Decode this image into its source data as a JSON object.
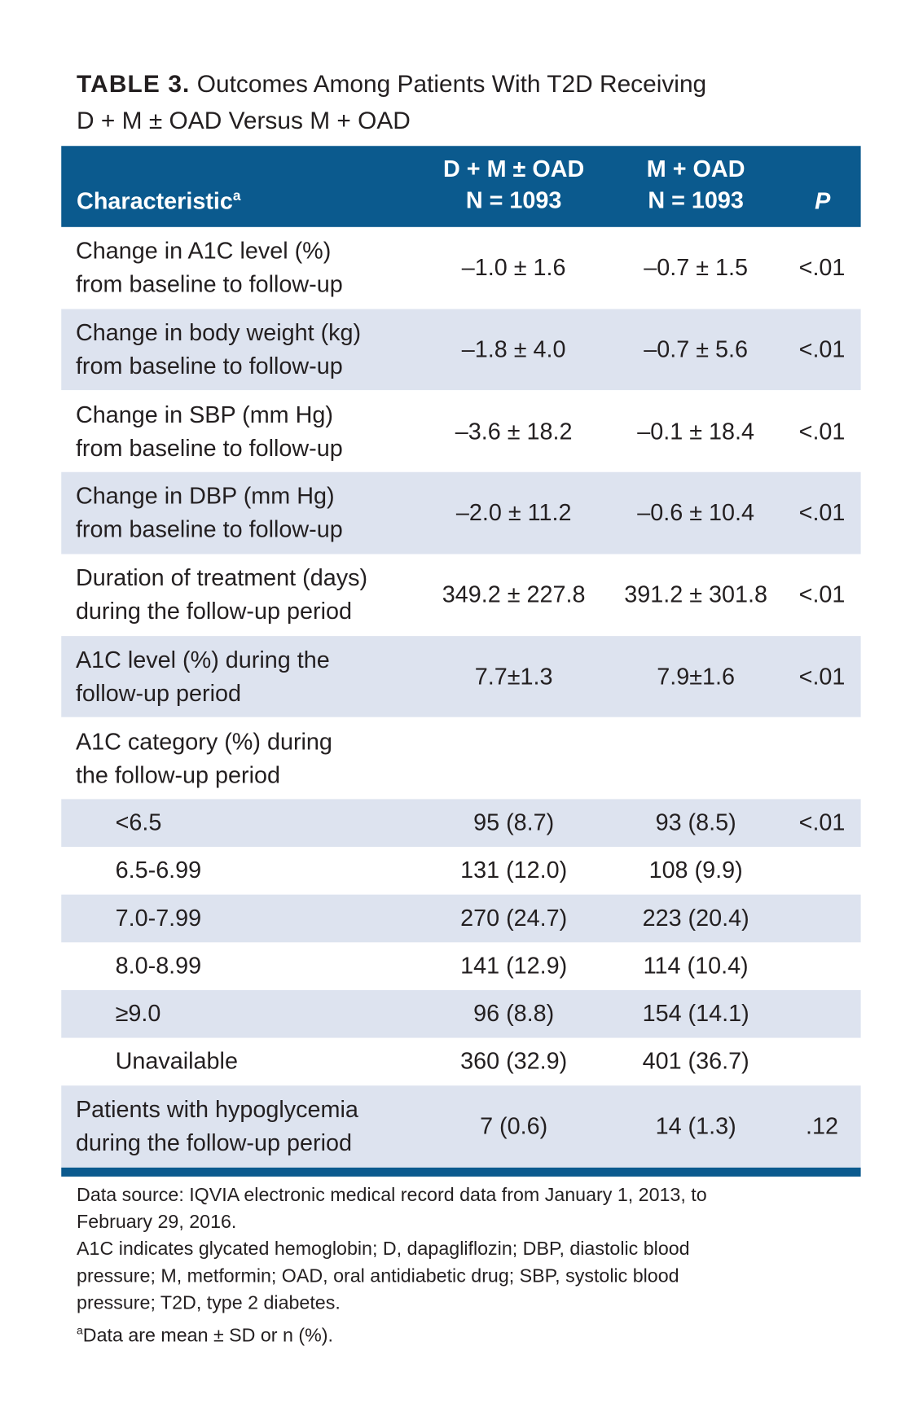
{
  "title": {
    "label": "TABLE 3.",
    "text": [
      "Outcomes Among Patients With T2D Receiving",
      "D + M ± OAD Versus M + OAD"
    ]
  },
  "table": {
    "header": {
      "characteristic": {
        "text": "Characteristic",
        "note": "a"
      },
      "dm": [
        "D + M ± OAD",
        "N = 1093"
      ],
      "m": [
        "M + OAD",
        "N = 1093"
      ],
      "p": "P"
    },
    "rows": [
      {
        "label": [
          "Change in A1C level (%)",
          "from baseline to follow-up"
        ],
        "dm": "–1.0 ± 1.6",
        "m": "–0.7 ± 1.5",
        "p": "<.01"
      },
      {
        "label": [
          "Change in body weight (kg)",
          "from baseline to follow-up"
        ],
        "dm": "–1.8 ± 4.0",
        "m": "–0.7 ± 5.6",
        "p": "<.01"
      },
      {
        "label": [
          "Change in SBP (mm Hg)",
          "from baseline to follow-up"
        ],
        "dm": "–3.6 ± 18.2",
        "m": "–0.1 ± 18.4",
        "p": "<.01"
      },
      {
        "label": [
          "Change in DBP (mm Hg)",
          "from baseline to follow-up"
        ],
        "dm": "–2.0 ± 11.2",
        "m": "–0.6 ± 10.4",
        "p": "<.01"
      },
      {
        "label": [
          "Duration of treatment (days)",
          "during the follow-up period"
        ],
        "dm": "349.2 ± 227.8",
        "m": "391.2 ± 301.8",
        "p": "<.01"
      },
      {
        "label": [
          "A1C level (%) during the",
          "follow-up period"
        ],
        "dm": "7.7±1.3",
        "m": "7.9±1.6",
        "p": "<.01"
      },
      {
        "label": [
          "A1C category (%) during",
          "the follow-up period"
        ],
        "subrows": [
          {
            "label": [
              "<6.5"
            ],
            "dm": "95 (8.7)",
            "m": "93 (8.5)",
            "p": "<.01"
          },
          {
            "label": [
              "6.5-6.99"
            ],
            "dm": "131 (12.0)",
            "m": "108 (9.9)"
          },
          {
            "label": [
              "7.0-7.99"
            ],
            "dm": "270 (24.7)",
            "m": "223 (20.4)"
          },
          {
            "label": [
              "8.0-8.99"
            ],
            "dm": "141 (12.9)",
            "m": "114 (10.4)"
          },
          {
            "label": [
              "≥9.0"
            ],
            "dm": "96 (8.8)",
            "m": "154 (14.1)"
          },
          {
            "label": [
              "Unavailable"
            ],
            "dm": "360 (32.9)",
            "m": "401 (36.7)"
          }
        ]
      },
      {
        "label": [
          "Patients with hypoglycemia",
          "during the follow-up period"
        ],
        "dm": "7 (0.6)",
        "m": "14 (1.3)",
        "p": ".12"
      }
    ]
  },
  "footnotes": {
    "source": [
      "Data source: IQVIA electronic medical record data from January 1, 2013, to",
      "February 29, 2016."
    ],
    "abbreviations": [
      "A1C indicates glycated hemoglobin; D, dapagliflozin; DBP, diastolic blood",
      "pressure; M, metformin; OAD, oral antidiabetic drug; SBP, systolic blood",
      "pressure; T2D, type 2 diabetes."
    ],
    "note": {
      "mark": "a",
      "text": "Data are mean ± SD or n (%)."
    }
  }
}
